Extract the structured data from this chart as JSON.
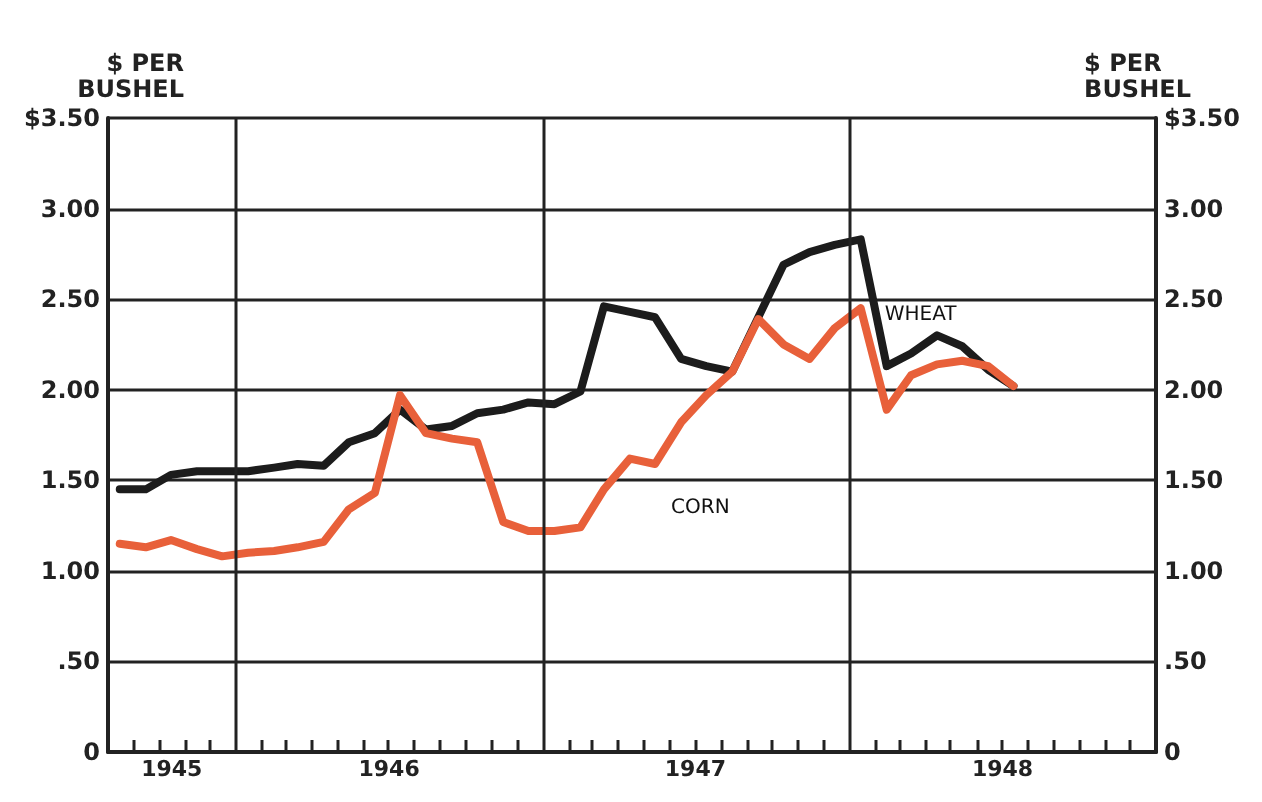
{
  "chart_data": {
    "type": "line",
    "ylabel": "$ PER\nBUSHEL",
    "y2label": "$ PER\nBUSHEL",
    "x": [
      "1945-08-15",
      "1945-09-15",
      "1945-10-15",
      "1945-11-15",
      "1945-12-15",
      "1946-01-15",
      "1946-02-15",
      "1946-03-15",
      "1946-04-15",
      "1946-05-15",
      "1946-06-15",
      "1946-07-15",
      "1946-08-15",
      "1946-09-15",
      "1946-10-15",
      "1946-11-15",
      "1946-12-15",
      "1947-01-15",
      "1947-02-15",
      "1947-03-15",
      "1947-04-15",
      "1947-05-15",
      "1947-06-15",
      "1947-07-15",
      "1947-08-15",
      "1947-09-15",
      "1947-10-15",
      "1947-11-15",
      "1947-12-15",
      "1948-01-15",
      "1948-02-15",
      "1948-03-15",
      "1948-04-15",
      "1948-05-15",
      "1948-06-15",
      "1948-07-15"
    ],
    "series": [
      {
        "name": "WHEAT",
        "color": "#1c1c1c",
        "values": [
          1.45,
          1.45,
          1.53,
          1.55,
          1.55,
          1.55,
          1.57,
          1.59,
          1.58,
          1.71,
          1.76,
          1.89,
          1.78,
          1.8,
          1.87,
          1.89,
          1.93,
          1.92,
          1.99,
          2.46,
          2.43,
          2.4,
          2.17,
          2.13,
          2.1,
          2.4,
          2.69,
          2.76,
          2.8,
          2.83,
          2.13,
          2.2,
          2.3,
          2.24,
          2.11,
          2.02
        ]
      },
      {
        "name": "CORN",
        "color": "#e8603a",
        "values": [
          1.15,
          1.13,
          1.17,
          1.12,
          1.08,
          1.1,
          1.11,
          1.13,
          1.16,
          1.34,
          1.43,
          1.97,
          1.76,
          1.73,
          1.71,
          1.27,
          1.22,
          1.22,
          1.24,
          1.45,
          1.62,
          1.59,
          1.82,
          1.97,
          2.1,
          2.39,
          2.25,
          2.17,
          2.34,
          2.45,
          1.89,
          2.08,
          2.14,
          2.16,
          2.13,
          2.02
        ]
      }
    ],
    "xlim": [
      "1945-08-01",
      "1949-01-01"
    ],
    "xticks": [
      {
        "value": "1945-09-01",
        "label": null
      },
      {
        "value": "1945-10-01",
        "label": null
      },
      {
        "value": "1945-10-16",
        "label": "1945"
      },
      {
        "value": "1945-11-01",
        "label": null
      },
      {
        "value": "1945-12-01",
        "label": null
      },
      {
        "value": "1946-02-01",
        "label": null
      },
      {
        "value": "1946-03-01",
        "label": null
      },
      {
        "value": "1946-04-01",
        "label": null
      },
      {
        "value": "1946-05-01",
        "label": null
      },
      {
        "value": "1946-06-01",
        "label": null
      },
      {
        "value": "1946-07-01",
        "label": null
      },
      {
        "value": "1946-07-02",
        "label": "1946"
      },
      {
        "value": "1946-08-01",
        "label": null
      },
      {
        "value": "1946-09-01",
        "label": null
      },
      {
        "value": "1946-10-01",
        "label": null
      },
      {
        "value": "1946-11-01",
        "label": null
      },
      {
        "value": "1946-12-01",
        "label": null
      },
      {
        "value": "1947-02-01",
        "label": null
      },
      {
        "value": "1947-03-01",
        "label": null
      },
      {
        "value": "1947-04-01",
        "label": null
      },
      {
        "value": "1947-05-01",
        "label": null
      },
      {
        "value": "1947-06-01",
        "label": null
      },
      {
        "value": "1947-07-01",
        "label": null
      },
      {
        "value": "1947-07-02",
        "label": "1947"
      },
      {
        "value": "1947-08-01",
        "label": null
      },
      {
        "value": "1947-09-01",
        "label": null
      },
      {
        "value": "1947-10-01",
        "label": null
      },
      {
        "value": "1947-11-01",
        "label": null
      },
      {
        "value": "1947-12-01",
        "label": null
      },
      {
        "value": "1948-02-01",
        "label": null
      },
      {
        "value": "1948-03-01",
        "label": null
      },
      {
        "value": "1948-04-01",
        "label": null
      },
      {
        "value": "1948-05-01",
        "label": null
      },
      {
        "value": "1948-06-01",
        "label": null
      },
      {
        "value": "1948-07-01",
        "label": null
      },
      {
        "value": "1948-07-02",
        "label": "1948"
      },
      {
        "value": "1948-08-01",
        "label": null
      },
      {
        "value": "1948-09-01",
        "label": null
      },
      {
        "value": "1948-10-01",
        "label": null
      },
      {
        "value": "1948-11-01",
        "label": null
      },
      {
        "value": "1948-12-01",
        "label": null
      }
    ],
    "ylim": [
      0,
      3.5
    ],
    "yticks": [
      0,
      {
        "value": 0.5,
        "label": ".50"
      },
      {
        "value": 1,
        "label": "1.00"
      },
      {
        "value": 1.5,
        "label": "1.50"
      },
      {
        "value": 2,
        "label": "2.00"
      },
      {
        "value": 2.5,
        "label": "2.50"
      },
      {
        "value": 3,
        "label": "3.00"
      },
      {
        "value": 3.5,
        "label": "$3.50"
      }
    ],
    "y2lim": [
      0,
      3.5
    ],
    "y2ticks": [
      0,
      {
        "value": 0.5,
        "label": ".50"
      },
      {
        "value": 1,
        "label": "1.00"
      },
      {
        "value": 1.5,
        "label": "1.50"
      },
      {
        "value": 2,
        "label": "2.00"
      },
      {
        "value": 2.5,
        "label": "2.50"
      },
      {
        "value": 3,
        "label": "3.00"
      },
      {
        "value": 3.5,
        "label": "$3.50"
      }
    ],
    "ref_lines": [
      {
        "axis": "x",
        "value": "1946-01-01",
        "color": "#222222"
      },
      {
        "axis": "x",
        "value": "1947-01-01",
        "color": "#222222"
      },
      {
        "axis": "x",
        "value": "1948-01-01",
        "color": "#222222"
      }
    ],
    "grid": "y",
    "legend": false,
    "marker": "none",
    "line_style": "solid"
  }
}
